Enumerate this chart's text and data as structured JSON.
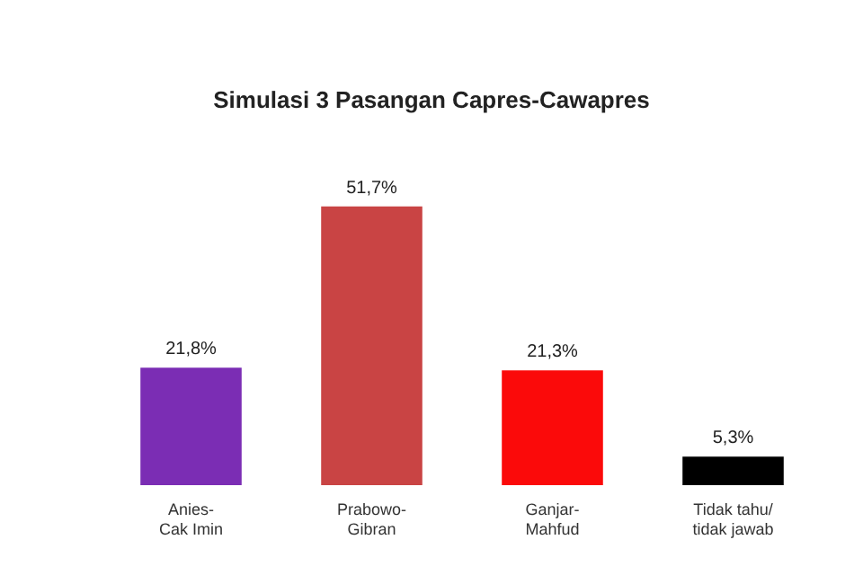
{
  "chart_data": {
    "type": "bar",
    "title": "Simulasi 3 Pasangan Capres-Cawapres",
    "categories": [
      "Anies-\nCak Imin",
      "Prabowo-\nGibran",
      "Ganjar-\nMahfud",
      "Tidak tahu/\ntidak jawab"
    ],
    "values": [
      21.8,
      51.7,
      21.3,
      5.3
    ],
    "colors": [
      "#7b2db4",
      "#c94444",
      "#fb0a0a",
      "#000000"
    ],
    "value_labels": [
      "21,8%",
      "51,7%",
      "21,3%",
      "5,3%"
    ]
  }
}
